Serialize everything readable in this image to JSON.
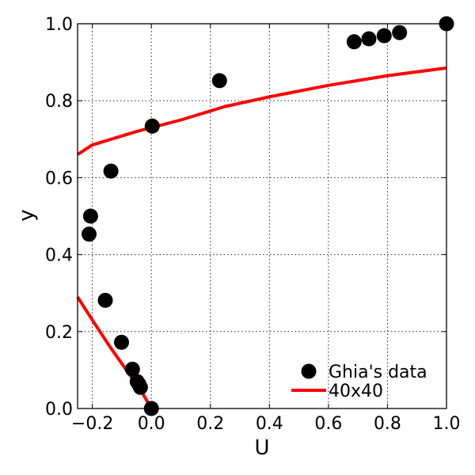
{
  "chart_data": {
    "type": "line",
    "title": "",
    "xlabel": "U",
    "ylabel": "y",
    "xlim": [
      -0.25,
      1.0
    ],
    "ylim": [
      0.0,
      1.0
    ],
    "xticks": [
      -0.2,
      0.0,
      0.2,
      0.4,
      0.6,
      0.8,
      1.0
    ],
    "xtick_labels": [
      "−0.2",
      "0.0",
      "0.2",
      "0.4",
      "0.6",
      "0.8",
      "1.0"
    ],
    "yticks": [
      0.0,
      0.2,
      0.4,
      0.6,
      0.8,
      1.0
    ],
    "ytick_labels": [
      "0.0",
      "0.2",
      "0.4",
      "0.6",
      "0.8",
      "1.0"
    ],
    "grid": true,
    "legend_position": "bottom-right",
    "series": [
      {
        "name": "Ghia's data",
        "kind": "scatter",
        "color": "#000000",
        "points": [
          [
            1.0,
            1.0
          ],
          [
            0.841,
            0.977
          ],
          [
            0.789,
            0.969
          ],
          [
            0.737,
            0.961
          ],
          [
            0.687,
            0.953
          ],
          [
            0.231,
            0.852
          ],
          [
            0.003,
            0.734
          ],
          [
            -0.137,
            0.617
          ],
          [
            -0.206,
            0.5
          ],
          [
            -0.211,
            0.453
          ],
          [
            -0.156,
            0.281
          ],
          [
            -0.101,
            0.172
          ],
          [
            -0.064,
            0.102
          ],
          [
            -0.048,
            0.07
          ],
          [
            -0.042,
            0.063
          ],
          [
            -0.037,
            0.055
          ],
          [
            0.0,
            0.0
          ]
        ]
      },
      {
        "name": "40x40",
        "kind": "line",
        "color": "#ff0000",
        "segments": [
          [
            [
              -0.25,
              0.66
            ],
            [
              -0.2,
              0.685
            ],
            [
              -0.05,
              0.72
            ],
            [
              0.1,
              0.75
            ],
            [
              0.25,
              0.785
            ],
            [
              0.4,
              0.81
            ],
            [
              0.6,
              0.84
            ],
            [
              0.8,
              0.865
            ],
            [
              1.0,
              0.885
            ]
          ],
          [
            [
              -0.25,
              0.29
            ],
            [
              -0.2,
              0.23
            ],
            [
              -0.14,
              0.16
            ],
            [
              -0.08,
              0.095
            ],
            [
              -0.03,
              0.04
            ],
            [
              0.0,
              0.0
            ]
          ]
        ]
      }
    ]
  }
}
